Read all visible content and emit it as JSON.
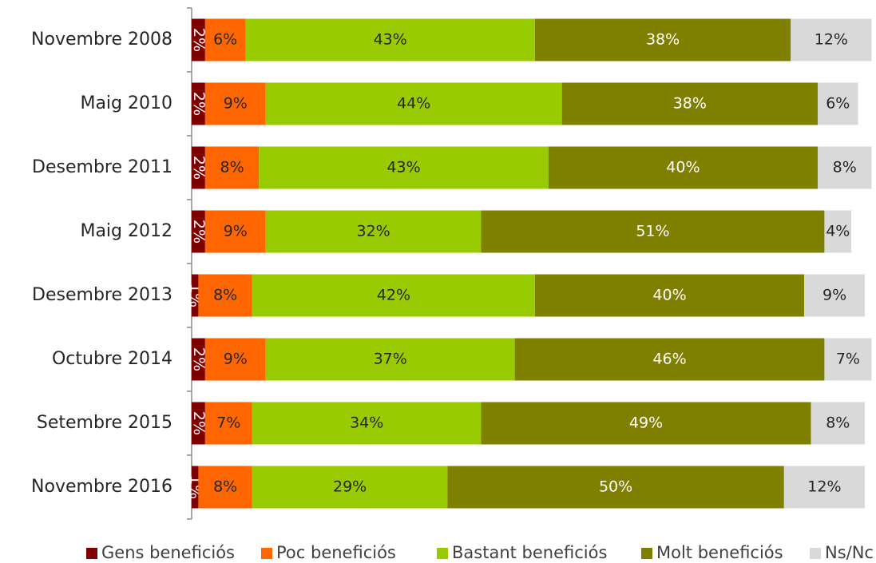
{
  "chart_data": {
    "type": "bar",
    "orientation": "horizontal",
    "stacked": "percent",
    "categories": [
      "Novembre 2008",
      "Maig 2010",
      "Desembre 2011",
      "Maig 2012",
      "Desembre 2013",
      "Octubre 2014",
      "Setembre 2015",
      "Novembre 2016"
    ],
    "series": [
      {
        "name": "Gens beneficiós",
        "color": "#7f0000",
        "label_color": "#ffffff",
        "values": [
          2,
          2,
          2,
          2,
          1,
          2,
          2,
          1
        ]
      },
      {
        "name": "Poc beneficiós",
        "color": "#ff6600",
        "label_color": "#262626",
        "values": [
          6,
          9,
          8,
          9,
          8,
          9,
          7,
          8
        ]
      },
      {
        "name": "Bastant beneficiós",
        "color": "#99cc00",
        "label_color": "#262626",
        "values": [
          43,
          44,
          43,
          32,
          42,
          37,
          34,
          29
        ]
      },
      {
        "name": "Molt beneficiós",
        "color": "#808000",
        "label_color": "#ffffff",
        "values": [
          38,
          38,
          40,
          51,
          40,
          46,
          49,
          50
        ]
      },
      {
        "name": "Ns/Nc",
        "color": "#d9d9d9",
        "label_color": "#262626",
        "values": [
          12,
          6,
          8,
          4,
          9,
          7,
          8,
          12
        ]
      }
    ],
    "value_suffix": "%",
    "xlim": [
      0,
      100
    ],
    "grid": false,
    "legend_position": "bottom"
  }
}
